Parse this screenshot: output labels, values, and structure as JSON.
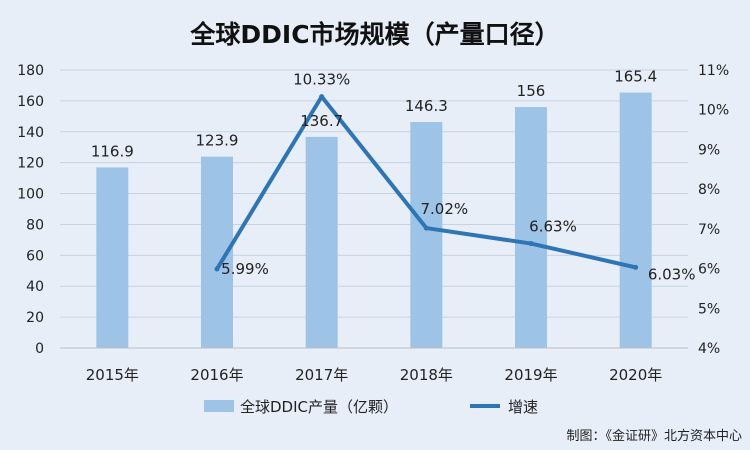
{
  "chart_data": {
    "type": "bar",
    "title": "全球DDIC市场规模（产量口径）",
    "categories": [
      "2015年",
      "2016年",
      "2017年",
      "2018年",
      "2019年",
      "2020年"
    ],
    "series": [
      {
        "name": "全球DDIC产量（亿颗）",
        "type": "bar",
        "axis": "left",
        "color": "#9dc3e6",
        "values": [
          116.9,
          123.9,
          136.7,
          146.3,
          156,
          165.4
        ],
        "labels": [
          "116.9",
          "123.9",
          "136.7",
          "146.3",
          "156",
          "165.4"
        ]
      },
      {
        "name": "增速",
        "type": "line",
        "axis": "right",
        "color": "#2e75b6",
        "values": [
          null,
          5.99,
          10.33,
          7.02,
          6.63,
          6.03
        ],
        "labels": [
          "",
          "5.99%",
          "10.33%",
          "7.02%",
          "6.63%",
          "6.03%"
        ]
      }
    ],
    "y_left": {
      "min": 0,
      "max": 180,
      "step": 20,
      "ticks": [
        "0",
        "20",
        "40",
        "60",
        "80",
        "100",
        "120",
        "140",
        "160",
        "180"
      ]
    },
    "y_right": {
      "min": 4,
      "max": 11,
      "step": 1,
      "ticks": [
        "4%",
        "5%",
        "6%",
        "7%",
        "8%",
        "9%",
        "10%",
        "11%"
      ]
    },
    "grid": true,
    "legend": "bottom",
    "source": "制图：《金证研》北方资本中心"
  }
}
